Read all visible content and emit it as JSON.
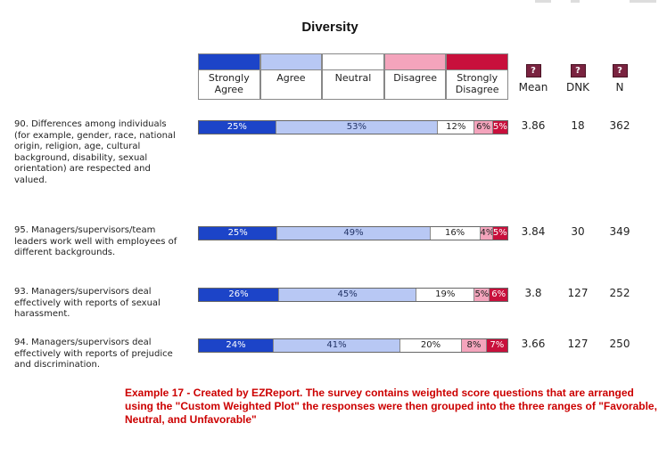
{
  "chart_data": {
    "type": "bar",
    "orientation": "horizontal",
    "stacked": true,
    "title": "Diversity",
    "series": [
      {
        "name": "Strongly Agree",
        "color": "#1c44c8"
      },
      {
        "name": "Agree",
        "color": "#b8c8f4"
      },
      {
        "name": "Neutral",
        "color": "#ffffff"
      },
      {
        "name": "Disagree",
        "color": "#f4a4bc"
      },
      {
        "name": "Strongly Disagree",
        "color": "#c8103c"
      }
    ],
    "stat_headers": [
      "Mean",
      "DNK",
      "N"
    ],
    "help_icon_glyph": "?",
    "questions": [
      {
        "number": "90.",
        "text": "Differences among individuals (for example, gender, race, national origin, religion, age, cultural background, disability, sexual orientation) are respected and valued.",
        "values": [
          25,
          53,
          12,
          6,
          5
        ],
        "labels": [
          "25%",
          "53%",
          "12%",
          "6%",
          "5%"
        ],
        "mean": "3.86",
        "dnk": "18",
        "n": "362"
      },
      {
        "number": "95.",
        "text": "Managers/supervisors/team leaders work well with employees of different backgrounds.",
        "values": [
          25,
          49,
          16,
          4,
          5
        ],
        "labels": [
          "25%",
          "49%",
          "16%",
          "4%",
          "5%"
        ],
        "mean": "3.84",
        "dnk": "30",
        "n": "349"
      },
      {
        "number": "93.",
        "text": "Managers/supervisors deal effectively with reports of sexual harassment.",
        "values": [
          26,
          45,
          19,
          5,
          6
        ],
        "labels": [
          "26%",
          "45%",
          "19%",
          "5%",
          "6%"
        ],
        "mean": "3.8",
        "dnk": "127",
        "n": "252"
      },
      {
        "number": "94.",
        "text": "Managers/supervisors deal effectively with reports of prejudice and discrimination.",
        "values": [
          24,
          41,
          20,
          8,
          7
        ],
        "labels": [
          "24%",
          "41%",
          "20%",
          "8%",
          "7%"
        ],
        "mean": "3.66",
        "dnk": "127",
        "n": "250"
      }
    ]
  },
  "footnote": "Example 17 - Created by EZReport.  The survey contains weighted score questions that are arranged using the \"Custom Weighted Plot\" the responses were then grouped into the three ranges of \"Favorable, Neutral, and Unfavorable\""
}
